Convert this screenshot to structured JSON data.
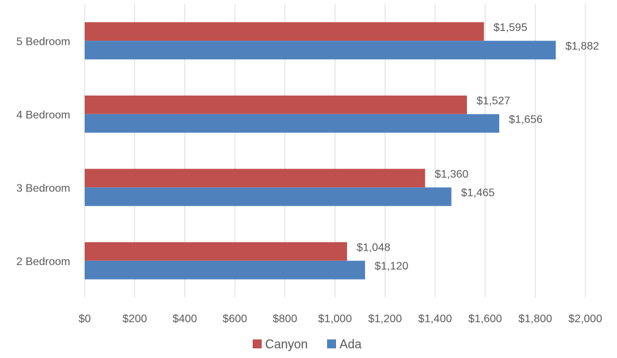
{
  "chart_data": {
    "type": "bar",
    "orientation": "horizontal",
    "categories": [
      "2 Bedroom",
      "3 Bedroom",
      "4 Bedroom",
      "5 Bedroom"
    ],
    "series": [
      {
        "name": "Canyon",
        "color": "#c0504d",
        "values": [
          1048,
          1360,
          1527,
          1595
        ],
        "labels": [
          "$1,048",
          "$1,360",
          "$1,527",
          "$1,595"
        ]
      },
      {
        "name": "Ada",
        "color": "#4f81bd",
        "values": [
          1120,
          1465,
          1656,
          1882
        ],
        "labels": [
          "$1,120",
          "$1,465",
          "$1,656",
          "$1,882"
        ]
      }
    ],
    "xlim": [
      0,
      2000
    ],
    "xticks": [
      0,
      200,
      400,
      600,
      800,
      1000,
      1200,
      1400,
      1600,
      1800,
      2000
    ],
    "xtick_labels": [
      "$0",
      "$200",
      "$400",
      "$600",
      "$800",
      "$1,000",
      "$1,200",
      "$1,400",
      "$1,600",
      "$1,800",
      "$2,000"
    ],
    "grid": "vertical",
    "gridline_color": "#d9d9d9",
    "legend": "bottom-center",
    "title": "",
    "xlabel": "",
    "ylabel": ""
  }
}
